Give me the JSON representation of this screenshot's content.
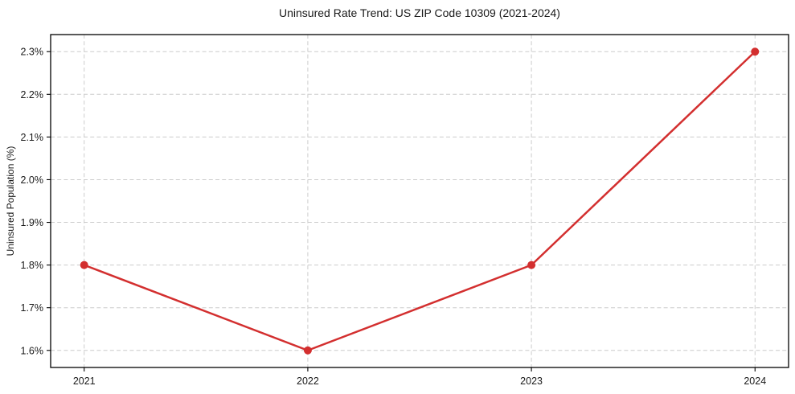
{
  "chart_data": {
    "type": "line",
    "title": "Uninsured Rate Trend: US ZIP Code 10309 (2021-2024)",
    "xlabel": "",
    "ylabel": "Uninsured Population (%)",
    "x": [
      2021,
      2022,
      2023,
      2024
    ],
    "xtick_labels": [
      "2021",
      "2022",
      "2023",
      "2024"
    ],
    "ytick_values": [
      1.6,
      1.7,
      1.8,
      1.9,
      2.0,
      2.1,
      2.2,
      2.3
    ],
    "ytick_labels": [
      "1.6%",
      "1.7%",
      "1.8%",
      "1.9%",
      "2.0%",
      "2.1%",
      "2.2%",
      "2.3%"
    ],
    "values": [
      1.8,
      1.6,
      1.8,
      2.3
    ],
    "xlim": [
      2020.85,
      2024.15
    ],
    "ylim": [
      1.56,
      2.34
    ],
    "grid": true,
    "grid_style": "dashed",
    "legend": "none",
    "marker": "circle",
    "colors": {
      "line": "#d32f2f",
      "marker": "#d32f2f",
      "grid": "#cccccc",
      "spine": "#000000",
      "text": "#1a1a1a",
      "background": "#ffffff"
    }
  }
}
